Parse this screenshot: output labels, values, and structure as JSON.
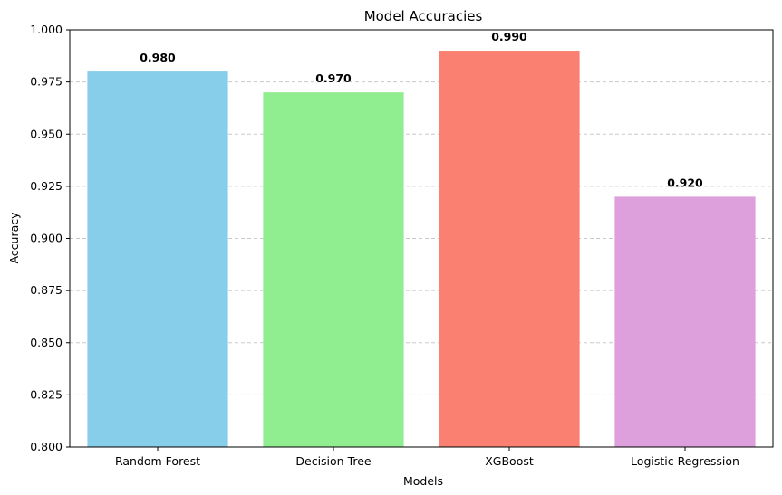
{
  "chart_data": {
    "type": "bar",
    "title": "Model Accuracies",
    "xlabel": "Models",
    "ylabel": "Accuracy",
    "categories": [
      "Random Forest",
      "Decision Tree",
      "XGBoost",
      "Logistic Regression"
    ],
    "values": [
      0.98,
      0.97,
      0.99,
      0.92
    ],
    "value_labels": [
      "0.980",
      "0.970",
      "0.990",
      "0.920"
    ],
    "colors": [
      "#87CEEB",
      "#90EE90",
      "#FA8072",
      "#DDA0DD"
    ],
    "ylim": [
      0.8,
      1.0
    ],
    "yticks": [
      0.8,
      0.825,
      0.85,
      0.875,
      0.9,
      0.925,
      0.95,
      0.975,
      1.0
    ],
    "ytick_labels": [
      "0.800",
      "0.825",
      "0.850",
      "0.875",
      "0.900",
      "0.925",
      "0.950",
      "0.975",
      "1.000"
    ],
    "grid": "y, dashed",
    "legend": "none"
  }
}
